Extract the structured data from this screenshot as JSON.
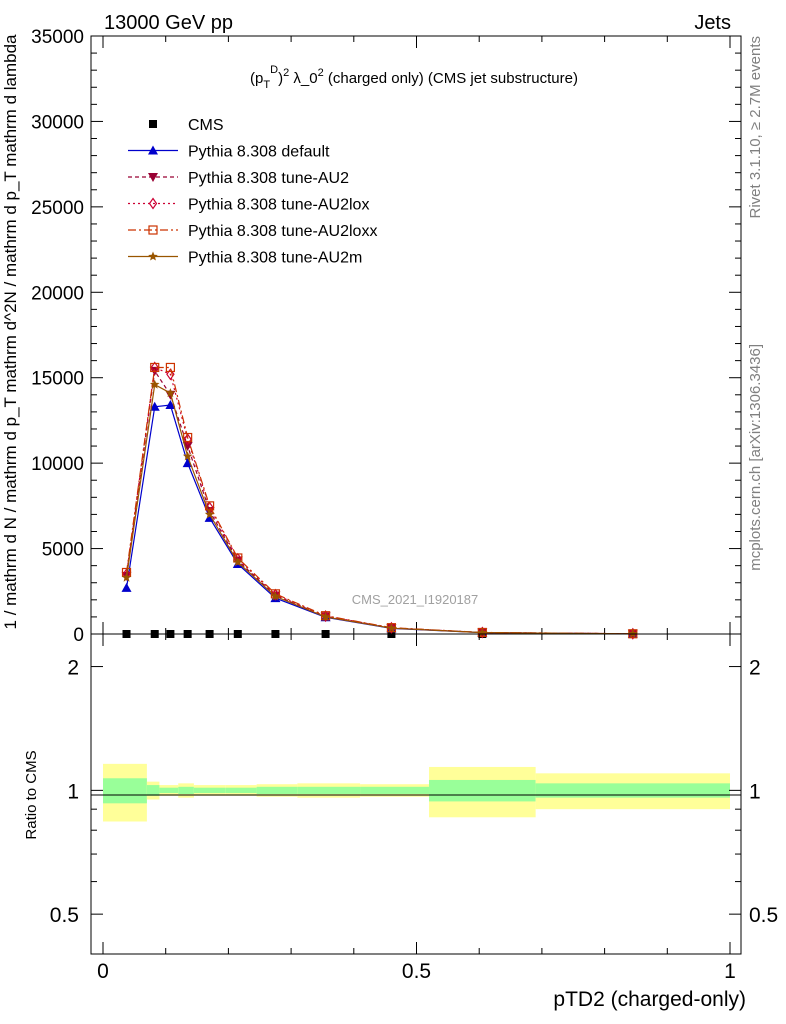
{
  "header": {
    "left": "13000 GeV pp",
    "right": "Jets"
  },
  "side_labels": {
    "top": "Rivet 3.1.10, ≥ 2.7M events",
    "bottom": "mcplots.cern.ch [arXiv:1306.3436]"
  },
  "watermark": "CMS_2021_I1920187",
  "chart_data": [
    {
      "type": "line",
      "title": "(p_T^D)^2 λ_0^2 (charged only) (CMS jet substructure)",
      "ylabel": "1 / mathrm d N / mathrm d p_T  mathrm d^2N / mathrm d p_T mathrm d lambda",
      "ylim": [
        0,
        35000
      ],
      "yticks": [
        0,
        5000,
        10000,
        15000,
        20000,
        25000,
        30000,
        35000
      ],
      "ytick_labels": [
        "0",
        "5000",
        "10000",
        "15000",
        "20000",
        "25000",
        "30000",
        "35000"
      ],
      "xlim": [
        -0.02,
        1.0
      ],
      "legend": "top-left",
      "x": [
        0.0375,
        0.0825,
        0.1075,
        0.135,
        0.17,
        0.215,
        0.275,
        0.355,
        0.46,
        0.605,
        0.845
      ],
      "series": [
        {
          "name": "CMS",
          "marker": "square",
          "color": "#000000",
          "dash": "none",
          "values": [
            0,
            0,
            0,
            0,
            0,
            0,
            0,
            0,
            0,
            0,
            0
          ]
        },
        {
          "name": "Pythia 8.308 default",
          "marker": "triangle-up",
          "color": "#0000cc",
          "dash": "none",
          "values": [
            2700,
            13300,
            13400,
            10000,
            6800,
            4100,
            2100,
            980,
            330,
            80,
            12
          ]
        },
        {
          "name": "Pythia 8.308 tune-AU2",
          "marker": "triangle-down",
          "color": "#990033",
          "dash": "4,3",
          "values": [
            3400,
            15400,
            14000,
            11000,
            7200,
            4300,
            2250,
            1030,
            350,
            85,
            13
          ]
        },
        {
          "name": "Pythia 8.308 tune-AU2lox",
          "marker": "diamond-open",
          "color": "#cc0033",
          "dash": "2,3",
          "values": [
            3500,
            15600,
            15200,
            11400,
            7400,
            4400,
            2300,
            1050,
            360,
            88,
            14
          ]
        },
        {
          "name": "Pythia 8.308 tune-AU2loxx",
          "marker": "square-open",
          "color": "#cc3300",
          "dash": "8,3,2,3",
          "values": [
            3600,
            15600,
            15600,
            11500,
            7500,
            4450,
            2350,
            1070,
            370,
            90,
            14
          ]
        },
        {
          "name": "Pythia 8.308 tune-AU2m",
          "marker": "star",
          "color": "#995500",
          "dash": "none",
          "values": [
            3300,
            14600,
            14100,
            10400,
            7000,
            4200,
            2200,
            1000,
            340,
            82,
            12
          ]
        }
      ]
    },
    {
      "type": "area",
      "ylabel": "Ratio to CMS",
      "xlabel": "pTD2 (charged-only)",
      "ylim": [
        0.4,
        2.4
      ],
      "yticks": [
        0.5,
        1,
        2
      ],
      "ytick_labels": [
        "0.5",
        "1",
        "2"
      ],
      "xticks": [
        0,
        0.5,
        1
      ],
      "xtick_labels": [
        "0",
        "0.5",
        "1"
      ],
      "bins": [
        {
          "lo": 0.0,
          "hi": 0.07,
          "stat": 0.07,
          "tot": 0.16
        },
        {
          "lo": 0.07,
          "hi": 0.09,
          "stat": 0.03,
          "tot": 0.05
        },
        {
          "lo": 0.09,
          "hi": 0.12,
          "stat": 0.015,
          "tot": 0.03
        },
        {
          "lo": 0.12,
          "hi": 0.145,
          "stat": 0.02,
          "tot": 0.04
        },
        {
          "lo": 0.145,
          "hi": 0.195,
          "stat": 0.015,
          "tot": 0.03
        },
        {
          "lo": 0.195,
          "hi": 0.245,
          "stat": 0.015,
          "tot": 0.03
        },
        {
          "lo": 0.245,
          "hi": 0.31,
          "stat": 0.02,
          "tot": 0.035
        },
        {
          "lo": 0.31,
          "hi": 0.41,
          "stat": 0.02,
          "tot": 0.04
        },
        {
          "lo": 0.41,
          "hi": 0.52,
          "stat": 0.02,
          "tot": 0.035
        },
        {
          "lo": 0.52,
          "hi": 0.69,
          "stat": 0.06,
          "tot": 0.14
        },
        {
          "lo": 0.69,
          "hi": 1.0,
          "stat": 0.04,
          "tot": 0.1
        }
      ]
    }
  ]
}
